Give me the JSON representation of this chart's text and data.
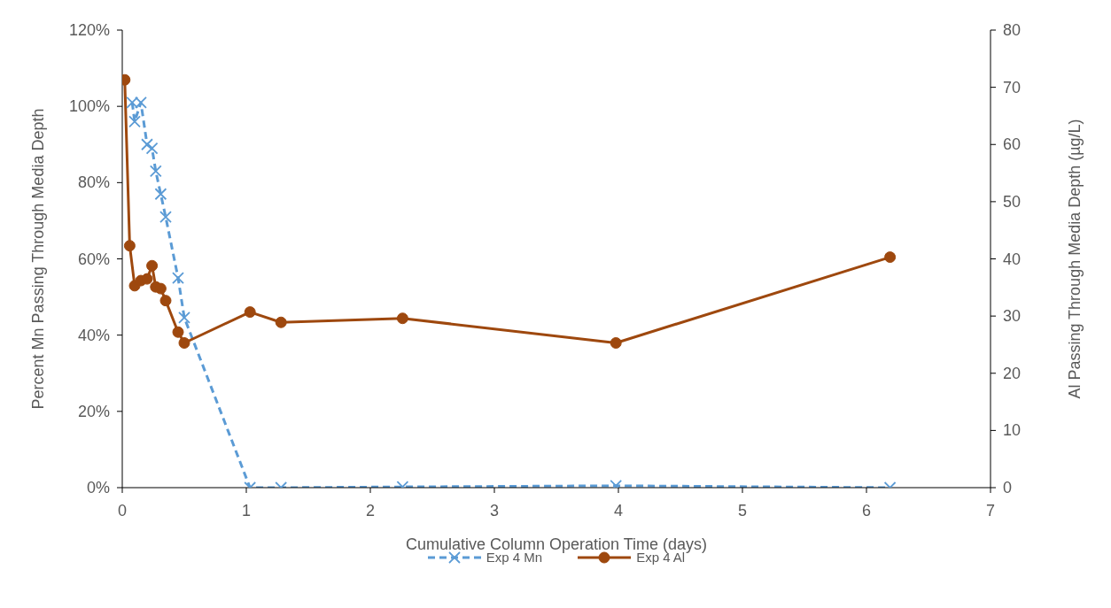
{
  "chart_data": {
    "type": "line",
    "xlabel": "Cumulative Column Operation Time (days)",
    "ylabel": "Percent Mn Passing Through Media Depth",
    "y2label": "Al Passing Through Media Depth (µg/L)",
    "xlim": [
      0,
      7
    ],
    "xticks": [
      0,
      1,
      2,
      3,
      4,
      5,
      6,
      7
    ],
    "ylim": [
      0,
      120
    ],
    "yticks": [
      {
        "value": 0,
        "label": "0%"
      },
      {
        "value": 20,
        "label": "20%"
      },
      {
        "value": 40,
        "label": "40%"
      },
      {
        "value": 60,
        "label": "60%"
      },
      {
        "value": 80,
        "label": "80%"
      },
      {
        "value": 100,
        "label": "100%"
      },
      {
        "value": 120,
        "label": "120%"
      }
    ],
    "y2lim": [
      0,
      80
    ],
    "y2ticks": [
      0,
      10,
      20,
      30,
      40,
      50,
      60,
      70,
      80
    ],
    "grid": false,
    "legend": "bottom",
    "series": [
      {
        "name": "Exp 4 Mn",
        "color": "#5b9bd5",
        "marker": "cross",
        "line_style": "dashed",
        "x": [
          0.08,
          0.1,
          0.15,
          0.2,
          0.24,
          0.27,
          0.31,
          0.35,
          0.45,
          0.5,
          1.03,
          1.28,
          2.26,
          3.98,
          6.19
        ],
        "values": [
          101,
          96,
          101,
          90,
          89,
          83,
          77,
          71,
          55,
          44.6,
          0,
          0,
          0.2,
          0.5,
          0
        ]
      },
      {
        "name": "Exp 4 Al",
        "color": "#9e480e",
        "marker": "circle",
        "line_style": "solid",
        "axis": "y2",
        "x": [
          0.02,
          0.06,
          0.1,
          0.15,
          0.2,
          0.24,
          0.27,
          0.31,
          0.35,
          0.45,
          0.5,
          1.03,
          1.28,
          2.26,
          3.98,
          6.19
        ],
        "values": [
          71.3,
          42.3,
          35.3,
          36.2,
          36.5,
          38.8,
          35.1,
          34.8,
          32.7,
          27.2,
          25.3,
          30.7,
          28.9,
          29.6,
          25.3,
          40.3
        ]
      }
    ]
  }
}
